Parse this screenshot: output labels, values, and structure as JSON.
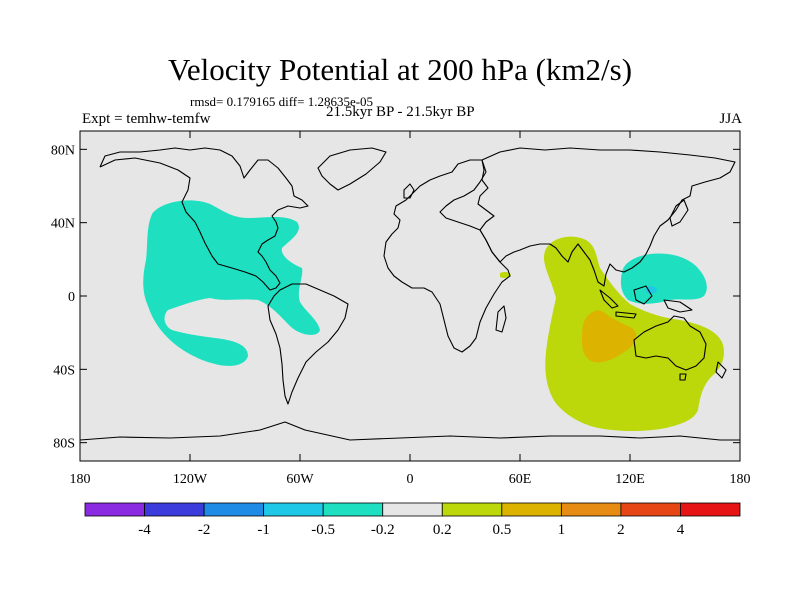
{
  "title": "Velocity Potential at 200 hPa (km2/s)",
  "stats_line": "rmsd= 0.179165 diff= 1.28635e-05",
  "left_label": "Expt = temhw-temfw",
  "center_label": "21.5kyr BP - 21.5kyr BP",
  "right_label": "JJA",
  "y_ticks": [
    {
      "lat": 80,
      "label": "80N"
    },
    {
      "lat": 40,
      "label": "40N"
    },
    {
      "lat": 0,
      "label": "0"
    },
    {
      "lat": -40,
      "label": "40S"
    },
    {
      "lat": -80,
      "label": "80S"
    }
  ],
  "x_ticks": [
    {
      "lon": -180,
      "label": "180"
    },
    {
      "lon": -120,
      "label": "120W"
    },
    {
      "lon": -60,
      "label": "60W"
    },
    {
      "lon": 0,
      "label": "0"
    },
    {
      "lon": 60,
      "label": "60E"
    },
    {
      "lon": 120,
      "label": "120E"
    },
    {
      "lon": 180,
      "label": "180"
    }
  ],
  "colorbar": {
    "colors": [
      "#8a2be2",
      "#3c3cdc",
      "#1e8ce6",
      "#1ec8e6",
      "#1ee0c0",
      "#e6e6e6",
      "#bcd70a",
      "#dcb400",
      "#e68c14",
      "#e64614",
      "#e61414"
    ],
    "labels": [
      "-4",
      "-2",
      "-1",
      "-0.5",
      "-0.2",
      "0.2",
      "0.5",
      "1",
      "2",
      "4"
    ]
  },
  "map_colors": {
    "background": "#e6e6e6",
    "negative_region": "#1ee0c0",
    "negative_core": "#1ec8e6",
    "positive_region": "#bcd70a",
    "positive_core": "#dcb400"
  }
}
